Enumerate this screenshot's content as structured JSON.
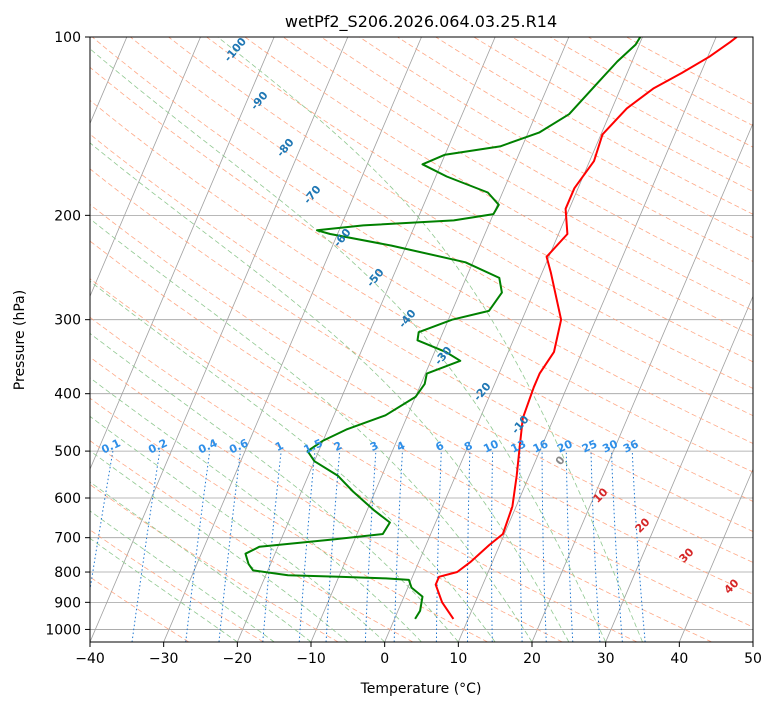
{
  "chart_data": {
    "type": "line",
    "title": "wetPf2_S206.2026.064.03.25.R14",
    "xlabel": "Temperature (°C)",
    "ylabel": "Pressure (hPa)",
    "xlim": [
      -40,
      50
    ],
    "ylim": [
      1050,
      100
    ],
    "y_scale": "log",
    "grid": true,
    "x_ticks": [
      -40,
      -30,
      -20,
      -10,
      0,
      10,
      20,
      30,
      40,
      50
    ],
    "y_ticks": [
      100,
      200,
      300,
      400,
      500,
      600,
      700,
      800,
      900,
      1000
    ],
    "x_tick_labels": [
      "−40",
      "−30",
      "−20",
      "−10",
      "0",
      "10",
      "20",
      "30",
      "40",
      "50"
    ],
    "y_tick_labels": [
      "100",
      "200",
      "300",
      "400",
      "500",
      "600",
      "700",
      "800",
      "900",
      "1000"
    ],
    "colors": {
      "temperature": "#ff0000",
      "dewpoint": "#008000",
      "isotherm": "#a0a0a0",
      "dry_adiabat": "#ffa07a",
      "moist_adiabat": "#90c890",
      "mixing_ratio": "#1f77d0",
      "dry_adiabat_label": "#d62728",
      "moist_adiabat_label": "#1f77b4"
    },
    "series": [
      {
        "role": "temperature",
        "points": [
          [
            8.0,
            960
          ],
          [
            5.5,
            900
          ],
          [
            3.6,
            840
          ],
          [
            3.6,
            815
          ],
          [
            5.8,
            800
          ],
          [
            7.0,
            770
          ],
          [
            8.6,
            720
          ],
          [
            9.8,
            690
          ],
          [
            9.5,
            620
          ],
          [
            8.3,
            550
          ],
          [
            7.0,
            490
          ],
          [
            5.8,
            440
          ],
          [
            5.5,
            390
          ],
          [
            5.5,
            370
          ],
          [
            6.2,
            340
          ],
          [
            5.3,
            300
          ],
          [
            1.2,
            250
          ],
          [
            -0.3,
            235
          ],
          [
            1.2,
            215
          ],
          [
            -0.5,
            195
          ],
          [
            -0.5,
            180
          ],
          [
            0.6,
            162
          ],
          [
            0.2,
            146
          ],
          [
            2.0,
            132
          ],
          [
            4.5,
            122
          ],
          [
            7.4,
            115
          ],
          [
            10.2,
            108
          ],
          [
            12.2,
            102
          ],
          [
            12.8,
            100
          ]
        ]
      },
      {
        "role": "dewpoint",
        "points": [
          [
            2.8,
            960
          ],
          [
            3.0,
            930
          ],
          [
            2.5,
            880
          ],
          [
            0.5,
            850
          ],
          [
            -0.3,
            825
          ],
          [
            -3.5,
            820
          ],
          [
            -10.0,
            815
          ],
          [
            -17.0,
            810
          ],
          [
            -22.0,
            795
          ],
          [
            -23.0,
            775
          ],
          [
            -23.5,
            760
          ],
          [
            -24.0,
            745
          ],
          [
            -22.5,
            725
          ],
          [
            -13.0,
            705
          ],
          [
            -6.5,
            690
          ],
          [
            -6.2,
            660
          ],
          [
            -9.0,
            630
          ],
          [
            -13.0,
            585
          ],
          [
            -16.0,
            550
          ],
          [
            -20.0,
            520
          ],
          [
            -21.5,
            500
          ],
          [
            -20.0,
            480
          ],
          [
            -17.5,
            460
          ],
          [
            -13.0,
            435
          ],
          [
            -10.0,
            405
          ],
          [
            -9.5,
            385
          ],
          [
            -9.8,
            370
          ],
          [
            -6.0,
            352
          ],
          [
            -8.5,
            340
          ],
          [
            -13.0,
            325
          ],
          [
            -13.3,
            315
          ],
          [
            -9.5,
            300
          ],
          [
            -5.0,
            290
          ],
          [
            -4.3,
            270
          ],
          [
            -5.5,
            255
          ],
          [
            -11.0,
            240
          ],
          [
            -22.0,
            225
          ],
          [
            -31.0,
            215
          ],
          [
            -33.0,
            212
          ],
          [
            -27.0,
            208
          ],
          [
            -15.0,
            204
          ],
          [
            -10.0,
            199
          ],
          [
            -9.8,
            192
          ],
          [
            -12.0,
            183
          ],
          [
            -18.5,
            172
          ],
          [
            -22.5,
            164
          ],
          [
            -20.0,
            158
          ],
          [
            -13.0,
            153
          ],
          [
            -8.5,
            145
          ],
          [
            -5.5,
            135
          ],
          [
            -3.5,
            120
          ],
          [
            -2.0,
            110
          ],
          [
            -0.5,
            103
          ],
          [
            -0.3,
            100
          ]
        ]
      }
    ],
    "dry_adiabat_labels": [
      "10",
      "20",
      "30",
      "40"
    ],
    "moist_adiabat_labels": [
      "-100",
      "-90",
      "-80",
      "-70",
      "-60",
      "-50",
      "-40",
      "-30",
      "-20",
      "-10",
      "0"
    ],
    "mixing_ratio_labels": [
      "0.1",
      "0.2",
      "0.4",
      "0.6",
      "1",
      "1.5",
      "2",
      "3",
      "4",
      "6",
      "8",
      "10",
      "13",
      "16",
      "20",
      "25",
      "30",
      "36"
    ]
  }
}
